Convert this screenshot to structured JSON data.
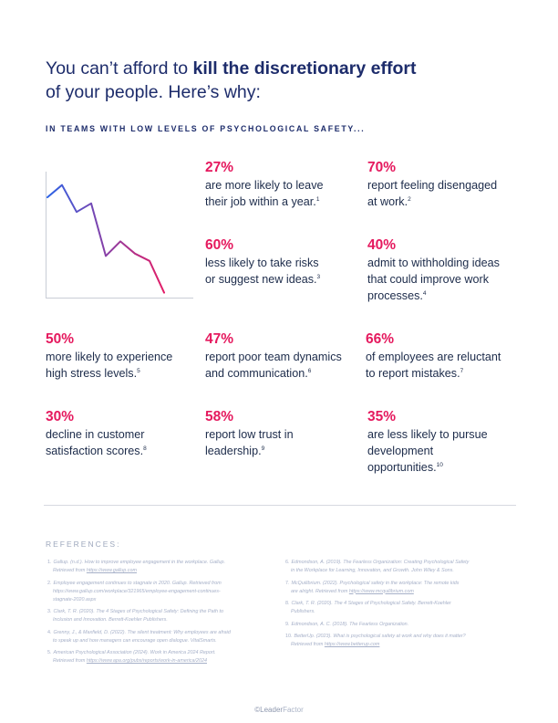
{
  "headline": {
    "part1": "You can’t afford to ",
    "bold": "kill the discretionary effort",
    "part2": "of your people. Here’s why:"
  },
  "subhead": "IN TEAMS WITH LOW LEVELS OF PSYCHOLOGICAL SAFETY...",
  "stats": [
    {
      "pct": "27%",
      "lines": [
        "are more likely to leave",
        "their job within a year."
      ],
      "sup": "1"
    },
    {
      "pct": "70%",
      "lines": [
        "report feeling disengaged",
        "at work."
      ],
      "sup": "2"
    },
    {
      "pct": "60%",
      "lines": [
        "less likely to take risks",
        "or suggest new ideas."
      ],
      "sup": "3"
    },
    {
      "pct": "40%",
      "lines": [
        "admit to withholding ideas",
        "that could improve work",
        "processes."
      ],
      "sup": "4"
    },
    {
      "pct": "50%",
      "lines": [
        "more likely to experience",
        "high stress levels."
      ],
      "sup": "5"
    },
    {
      "pct": "47%",
      "lines": [
        "report poor team dynamics",
        "and communication."
      ],
      "sup": "6"
    },
    {
      "pct": "66%",
      "lines": [
        "of employees are reluctant",
        "to report mistakes."
      ],
      "sup": "7"
    },
    {
      "pct": "30%",
      "lines": [
        "decline in customer",
        "satisfaction scores."
      ],
      "sup": "8"
    },
    {
      "pct": "58%",
      "lines": [
        "report low trust in",
        "leadership."
      ],
      "sup": "9"
    },
    {
      "pct": "35%",
      "lines": [
        "are less likely to pursue",
        "development",
        "opportunities."
      ],
      "sup": "10"
    }
  ],
  "chart": {
    "values": [
      82,
      92,
      70,
      77,
      34,
      46,
      36,
      30,
      4
    ],
    "ylim": [
      0,
      100
    ],
    "colors": {
      "start": "#2c63e6",
      "end": "#e31d67",
      "axis": "#c9cdd6"
    }
  },
  "references": {
    "title": "REFERENCES:",
    "left": [
      {
        "num": "1.",
        "lines": [
          "Gallup. (n.d.). How to improve employee engagement in the workplace. Gallup.",
          "Retrieved from "
        ],
        "link": "https://www.gallup.com"
      },
      {
        "num": "2.",
        "lines": [
          "Employee engagement continues to stagnate in 2020. Gallup. Retrieved from",
          "https://www.gallup.com/workplace/321965/employee-engagement-continues-",
          "stagnate-2020.aspx"
        ],
        "link": ""
      },
      {
        "num": "3.",
        "lines": [
          "Clark, T. R. (2020). The 4 Stages of Psychological Safety: Defining the Path to",
          "Inclusion and Innovation. Berrett-Koehler Publishers."
        ],
        "link": ""
      },
      {
        "num": "4.",
        "lines": [
          "Grenny, J., & Maxfield, D. (2022). The silent treatment: Why employees are afraid",
          "to speak up and how managers can encourage open dialogue. VitalSmarts."
        ],
        "link": ""
      },
      {
        "num": "5.",
        "lines": [
          "American Psychological Association (2024). Work in America 2024 Report.",
          "Retrieved from "
        ],
        "link": "https://www.apa.org/pubs/reports/work-in-america/2024"
      }
    ],
    "right": [
      {
        "num": "6.",
        "lines": [
          "Edmondson, A. (2019). The Fearless Organization: Creating Psychological Safety",
          "in the Workplace for Learning, Innovation, and Growth. John Wiley & Sons."
        ],
        "link": ""
      },
      {
        "num": "7.",
        "lines": [
          "McQuilibrium. (2022). Psychological safety in the workplace: The remote kids",
          "are alright. Retrieved from "
        ],
        "link": "https://www.mcquilibrium.com"
      },
      {
        "num": "8.",
        "lines": [
          "Clark, T. R. (2020). The 4 Stages of Psychological Safety. Berrett-Koehler",
          "Publishers."
        ],
        "link": ""
      },
      {
        "num": "9.",
        "lines": [
          "Edmondson, A. C. (2018). The Fearless Organization."
        ],
        "link": ""
      },
      {
        "num": "10.",
        "lines": [
          "BetterUp. (2023). What is psychological safety at work and why does it matter?",
          "Retrieved from "
        ],
        "link": "https://www.betterup.com"
      }
    ]
  },
  "footer": {
    "copy": "©Leader",
    "brand": "Factor"
  }
}
